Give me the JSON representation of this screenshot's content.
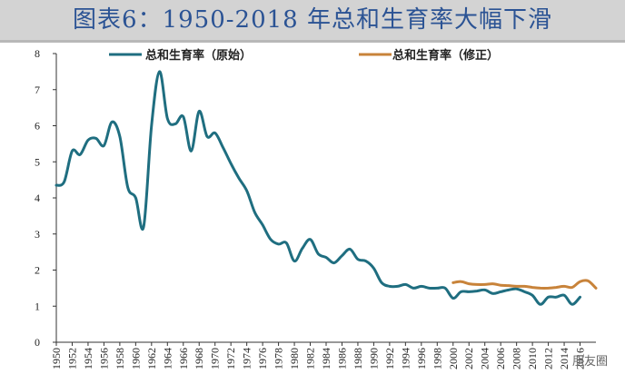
{
  "title": "图表6：1950-2018 年总和生育率大幅下滑",
  "watermark": "朋友圈",
  "chart_data": {
    "type": "line",
    "xlim": [
      1950,
      2018
    ],
    "ylim": [
      0,
      8
    ],
    "y_ticks": [
      "0",
      "1",
      "2",
      "3",
      "4",
      "5",
      "6",
      "7",
      "8"
    ],
    "x_ticks": [
      "1950",
      "1952",
      "1954",
      "1956",
      "1958",
      "1960",
      "1962",
      "1964",
      "1966",
      "1968",
      "1970",
      "1972",
      "1974",
      "1976",
      "1978",
      "1980",
      "1982",
      "1984",
      "1986",
      "1988",
      "1990",
      "1992",
      "1994",
      "1996",
      "1998",
      "2000",
      "2002",
      "2004",
      "2006",
      "2008",
      "2010",
      "2012",
      "2014",
      "2016"
    ],
    "x_tick_values": [
      1950,
      1952,
      1954,
      1956,
      1958,
      1960,
      1962,
      1964,
      1966,
      1968,
      1970,
      1972,
      1974,
      1976,
      1978,
      1980,
      1982,
      1984,
      1986,
      1988,
      1990,
      1992,
      1994,
      1996,
      1998,
      2000,
      2002,
      2004,
      2006,
      2008,
      2010,
      2012,
      2014,
      2016
    ],
    "legend_position": "top",
    "grid": false,
    "series": [
      {
        "name": "总和生育率（原始）",
        "color": "#1f6e80",
        "x": [
          1950,
          1951,
          1952,
          1953,
          1954,
          1955,
          1956,
          1957,
          1958,
          1959,
          1960,
          1961,
          1962,
          1963,
          1964,
          1965,
          1966,
          1967,
          1968,
          1969,
          1970,
          1971,
          1972,
          1973,
          1974,
          1975,
          1976,
          1977,
          1978,
          1979,
          1980,
          1981,
          1982,
          1983,
          1984,
          1985,
          1986,
          1987,
          1988,
          1989,
          1990,
          1991,
          1992,
          1993,
          1994,
          1995,
          1996,
          1997,
          1998,
          1999,
          2000,
          2001,
          2002,
          2003,
          2004,
          2005,
          2006,
          2007,
          2008,
          2009,
          2010,
          2011,
          2012,
          2013,
          2014,
          2015,
          2016
        ],
        "values": [
          4.35,
          4.45,
          5.3,
          5.2,
          5.6,
          5.65,
          5.45,
          6.1,
          5.7,
          4.3,
          4.0,
          3.2,
          6.0,
          7.5,
          6.2,
          6.05,
          6.25,
          5.3,
          6.4,
          5.7,
          5.8,
          5.4,
          4.95,
          4.55,
          4.2,
          3.6,
          3.25,
          2.85,
          2.72,
          2.75,
          2.25,
          2.6,
          2.85,
          2.45,
          2.35,
          2.2,
          2.4,
          2.58,
          2.3,
          2.25,
          2.05,
          1.65,
          1.55,
          1.55,
          1.6,
          1.5,
          1.55,
          1.5,
          1.5,
          1.5,
          1.22,
          1.4,
          1.4,
          1.42,
          1.45,
          1.35,
          1.4,
          1.45,
          1.48,
          1.4,
          1.3,
          1.05,
          1.25,
          1.25,
          1.3,
          1.05,
          1.25
        ]
      },
      {
        "name": "总和生育率（修正）",
        "color": "#c8833a",
        "x": [
          2000,
          2001,
          2002,
          2003,
          2004,
          2005,
          2006,
          2007,
          2008,
          2009,
          2010,
          2011,
          2012,
          2013,
          2014,
          2015,
          2016,
          2017,
          2018
        ],
        "values": [
          1.65,
          1.68,
          1.62,
          1.6,
          1.6,
          1.62,
          1.58,
          1.57,
          1.55,
          1.55,
          1.52,
          1.5,
          1.5,
          1.52,
          1.55,
          1.52,
          1.68,
          1.7,
          1.5
        ]
      }
    ]
  }
}
